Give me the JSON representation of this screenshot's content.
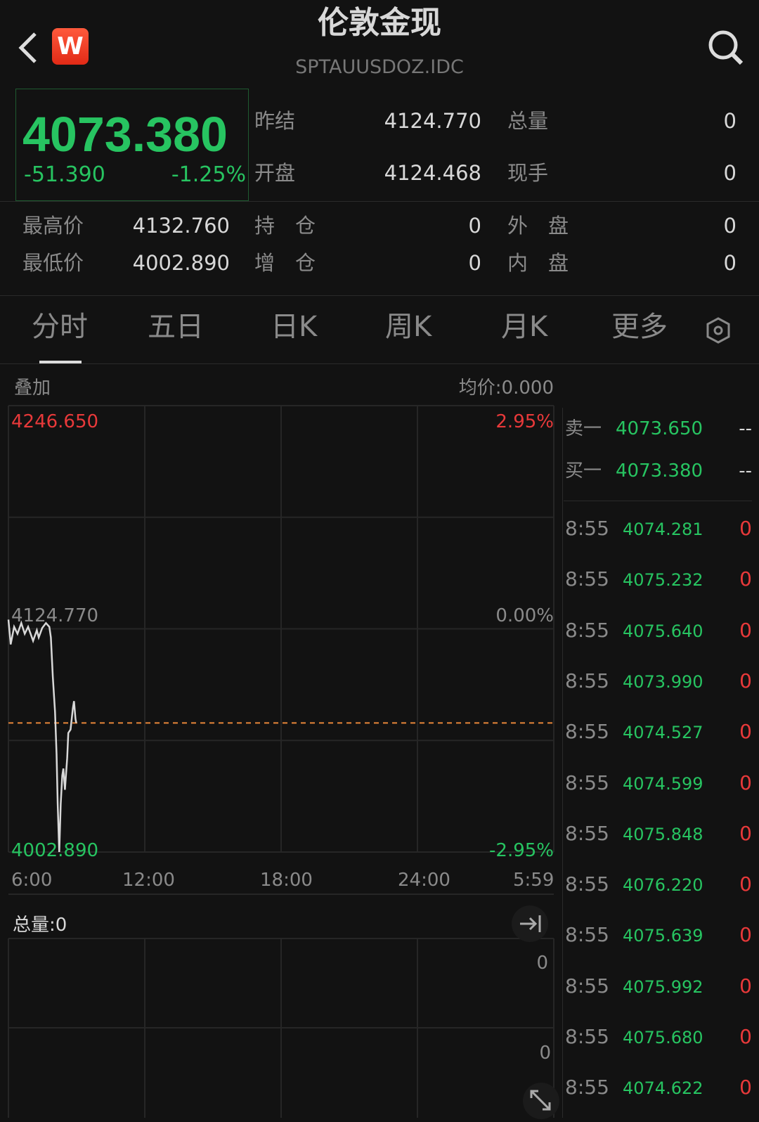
{
  "header": {
    "title": "伦敦金现",
    "code": "SPTAUUSDOZ.IDC",
    "logo": "W",
    "back_icon": "chevron-left-icon",
    "search_icon": "search-icon"
  },
  "quote": {
    "price": "4073.380",
    "change": "-51.390",
    "change_pct": "-1.25%",
    "stats": [
      {
        "label": "昨结",
        "value": "4124.770"
      },
      {
        "label": "总量",
        "value": "0"
      },
      {
        "label": "开盘",
        "value": "4124.468"
      },
      {
        "label": "现手",
        "value": "0"
      },
      {
        "label": "最高价",
        "value": "4132.760"
      },
      {
        "label": "持　仓",
        "value": "0"
      },
      {
        "label": "外　盘",
        "value": "0"
      },
      {
        "label": "最低价",
        "value": "4002.890"
      },
      {
        "label": "增　仓",
        "value": "0"
      },
      {
        "label": "内　盘",
        "value": "0"
      }
    ]
  },
  "tabs": [
    "分时",
    "五日",
    "日K",
    "周K",
    "月K",
    "更多"
  ],
  "active_tab": "分时",
  "chart_toolbar": {
    "overlay": "叠加",
    "avg_price": "均价:0.000"
  },
  "colors": {
    "up": "#e8393a",
    "down": "#27c461",
    "line": "#d8d8d8",
    "prev_close_line": "#e8863a"
  },
  "chart_data": {
    "type": "line",
    "y_labels": {
      "top": "4246.650",
      "mid": "4124.770",
      "bottom": "4002.890",
      "top_pct": "2.95%",
      "mid_pct": "0.00%",
      "bottom_pct": "-2.95%"
    },
    "ylim": [
      4002.89,
      4246.65
    ],
    "prev_close": 4124.77,
    "last_price": 4073.38,
    "x_ticks": [
      "6:00",
      "12:00",
      "18:00",
      "24:00",
      "5:59"
    ],
    "x": [
      "6:00",
      "6:06",
      "6:15",
      "6:24",
      "6:34",
      "6:43",
      "6:52",
      "7:05",
      "7:15",
      "7:20",
      "7:29",
      "7:39",
      "7:48",
      "7:52",
      "7:57",
      "8:03",
      "8:07",
      "8:10",
      "8:14",
      "8:18",
      "8:22",
      "8:25",
      "8:29",
      "8:35",
      "8:38",
      "8:44",
      "8:50",
      "8:53",
      "8:57",
      "8:59"
    ],
    "values": [
      4129.8,
      4116.3,
      4125.9,
      4122.1,
      4127.9,
      4122.1,
      4125.9,
      4118.2,
      4124.0,
      4120.1,
      4125.2,
      4127.9,
      4125.9,
      4120.1,
      4098.9,
      4079.5,
      4056.3,
      4029.2,
      4002.9,
      4029.2,
      4044.7,
      4048.5,
      4036.9,
      4054.3,
      4067.9,
      4069.8,
      4081.4,
      4085.3,
      4075.6,
      4073.4
    ],
    "grid": true
  },
  "volume": {
    "label": "总量:0",
    "top_value": "0",
    "mid_value": "0"
  },
  "order_book": [
    {
      "label": "卖一",
      "price": "4073.650",
      "qty": "--"
    },
    {
      "label": "买一",
      "price": "4073.380",
      "qty": "--"
    }
  ],
  "ticks": [
    {
      "time": "8:55",
      "price": "4074.281",
      "vol": "0"
    },
    {
      "time": "8:55",
      "price": "4075.232",
      "vol": "0"
    },
    {
      "time": "8:55",
      "price": "4075.640",
      "vol": "0"
    },
    {
      "time": "8:55",
      "price": "4073.990",
      "vol": "0"
    },
    {
      "time": "8:55",
      "price": "4074.527",
      "vol": "0"
    },
    {
      "time": "8:55",
      "price": "4074.599",
      "vol": "0"
    },
    {
      "time": "8:55",
      "price": "4075.848",
      "vol": "0"
    },
    {
      "time": "8:55",
      "price": "4076.220",
      "vol": "0"
    },
    {
      "time": "8:55",
      "price": "4075.639",
      "vol": "0"
    },
    {
      "time": "8:55",
      "price": "4075.992",
      "vol": "0"
    },
    {
      "time": "8:55",
      "price": "4075.680",
      "vol": "0"
    },
    {
      "time": "8:55",
      "price": "4074.622",
      "vol": "0"
    }
  ]
}
